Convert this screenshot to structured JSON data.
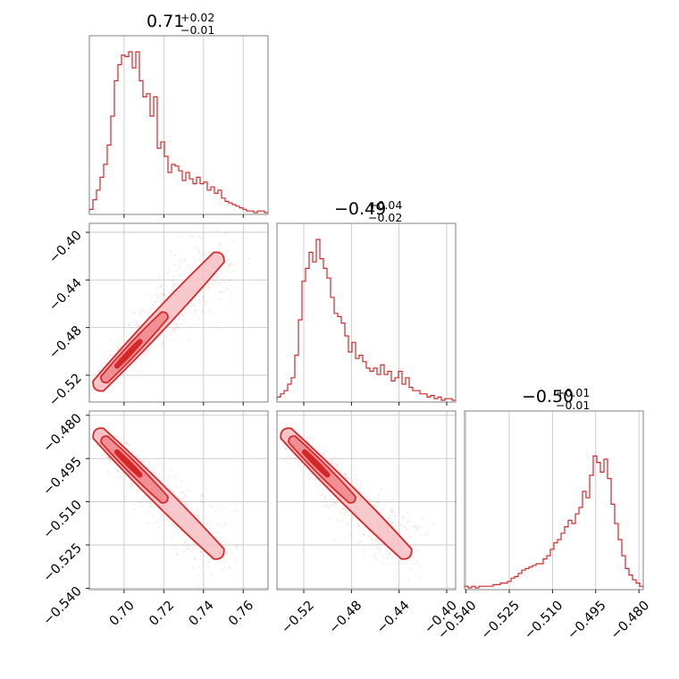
{
  "chart_data": {
    "type": "corner",
    "color": "#d62728",
    "parameters": [
      {
        "range": [
          0.6825,
          0.7725
        ],
        "ticks": [
          0.7,
          0.72,
          0.74,
          0.76
        ],
        "tick_labels": [
          "0.70",
          "0.72",
          "0.74",
          "0.76"
        ]
      },
      {
        "range": [
          -0.5425,
          -0.3925
        ],
        "ticks": [
          -0.52,
          -0.48,
          -0.44,
          -0.4
        ],
        "tick_labels": [
          "−0.52",
          "−0.48",
          "−0.44",
          "−0.40"
        ]
      },
      {
        "range": [
          -0.5405,
          -0.4785
        ],
        "ticks": [
          -0.54,
          -0.525,
          -0.51,
          -0.495,
          -0.48
        ],
        "tick_labels": [
          "−0.540",
          "−0.525",
          "−0.510",
          "−0.495",
          "−0.480"
        ]
      }
    ],
    "titles": [
      {
        "median": "0.71",
        "plus": "+0.02",
        "minus": "−0.01"
      },
      {
        "median": "−0.49",
        "plus": "+0.04",
        "minus": "−0.02"
      },
      {
        "median": "−0.50",
        "plus": "+0.01",
        "minus": "−0.01"
      }
    ],
    "histograms": [
      [
        0.02,
        0.08,
        0.14,
        0.22,
        0.3,
        0.42,
        0.6,
        0.82,
        0.92,
        0.98,
        0.97,
        1.0,
        0.9,
        1.0,
        0.82,
        0.72,
        0.74,
        0.6,
        0.72,
        0.4,
        0.44,
        0.35,
        0.25,
        0.3,
        0.29,
        0.26,
        0.2,
        0.25,
        0.21,
        0.18,
        0.22,
        0.18,
        0.19,
        0.14,
        0.16,
        0.12,
        0.14,
        0.09,
        0.07,
        0.06,
        0.05,
        0.04,
        0.03,
        0.02,
        0.01,
        0.01,
        0.0,
        0.01,
        0.01,
        0.0
      ],
      [
        0.02,
        0.04,
        0.06,
        0.1,
        0.14,
        0.28,
        0.5,
        0.74,
        0.82,
        0.92,
        0.86,
        1.0,
        0.88,
        0.82,
        0.76,
        0.64,
        0.54,
        0.52,
        0.48,
        0.4,
        0.3,
        0.36,
        0.26,
        0.28,
        0.24,
        0.2,
        0.18,
        0.2,
        0.16,
        0.22,
        0.16,
        0.18,
        0.12,
        0.14,
        0.18,
        0.1,
        0.14,
        0.08,
        0.06,
        0.06,
        0.04,
        0.04,
        0.02,
        0.03,
        0.01,
        0.02,
        0.0,
        0.01,
        0.01,
        0.0
      ],
      [
        0.01,
        0.0,
        0.01,
        0.0,
        0.01,
        0.01,
        0.01,
        0.01,
        0.02,
        0.02,
        0.03,
        0.03,
        0.04,
        0.06,
        0.07,
        0.09,
        0.11,
        0.12,
        0.13,
        0.14,
        0.15,
        0.15,
        0.18,
        0.2,
        0.24,
        0.28,
        0.3,
        0.34,
        0.38,
        0.42,
        0.4,
        0.46,
        0.5,
        0.6,
        0.56,
        0.7,
        0.82,
        0.78,
        0.72,
        0.8,
        0.68,
        0.52,
        0.4,
        0.3,
        0.2,
        0.12,
        0.08,
        0.05,
        0.03,
        0.01
      ]
    ],
    "grid": true
  }
}
